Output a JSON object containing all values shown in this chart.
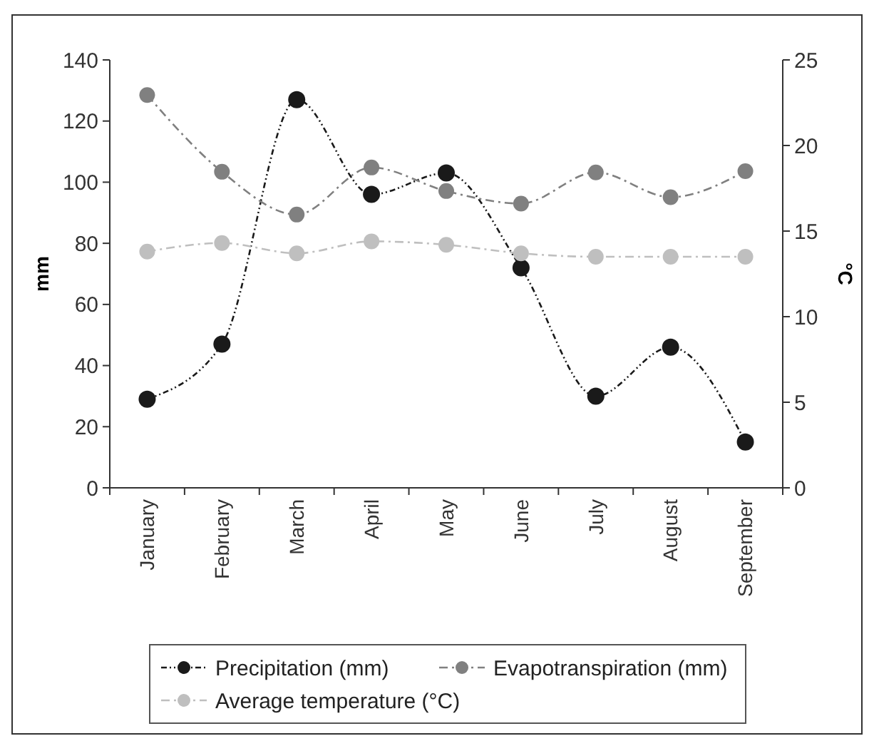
{
  "chart_data": {
    "type": "line",
    "categories": [
      "January",
      "February",
      "March",
      "April",
      "May",
      "June",
      "July",
      "August",
      "September"
    ],
    "ylabel": "mm",
    "y2label": "°C",
    "ylim": [
      0,
      140
    ],
    "yticks": [
      0,
      20,
      40,
      60,
      80,
      100,
      120,
      140
    ],
    "y2lim": [
      0,
      25
    ],
    "y2ticks": [
      0,
      5,
      10,
      15,
      20,
      25
    ],
    "marker": "circle",
    "legend": "bottom",
    "grid": false,
    "series": [
      {
        "name": "Precipitation (mm)",
        "color": "#1a1a1a",
        "line_style": "dotted",
        "values": [
          29,
          47,
          127,
          96,
          103,
          72,
          30,
          46,
          15
        ]
      },
      {
        "name": "Evapotranspiration (mm)",
        "color": "#808080",
        "line_style": "dashed",
        "values": [
          128.5,
          103.4,
          89.4,
          104.8,
          97.1,
          93,
          103.2,
          95.1,
          103.6
        ]
      },
      {
        "name": "Average temperature (°C)",
        "color": "#bfbfbf",
        "line_style": "dashed",
        "axis": "y2",
        "values": [
          13.8,
          14.3,
          13.7,
          14.4,
          14.2,
          13.7,
          13.5,
          13.5,
          13.5
        ]
      }
    ]
  }
}
